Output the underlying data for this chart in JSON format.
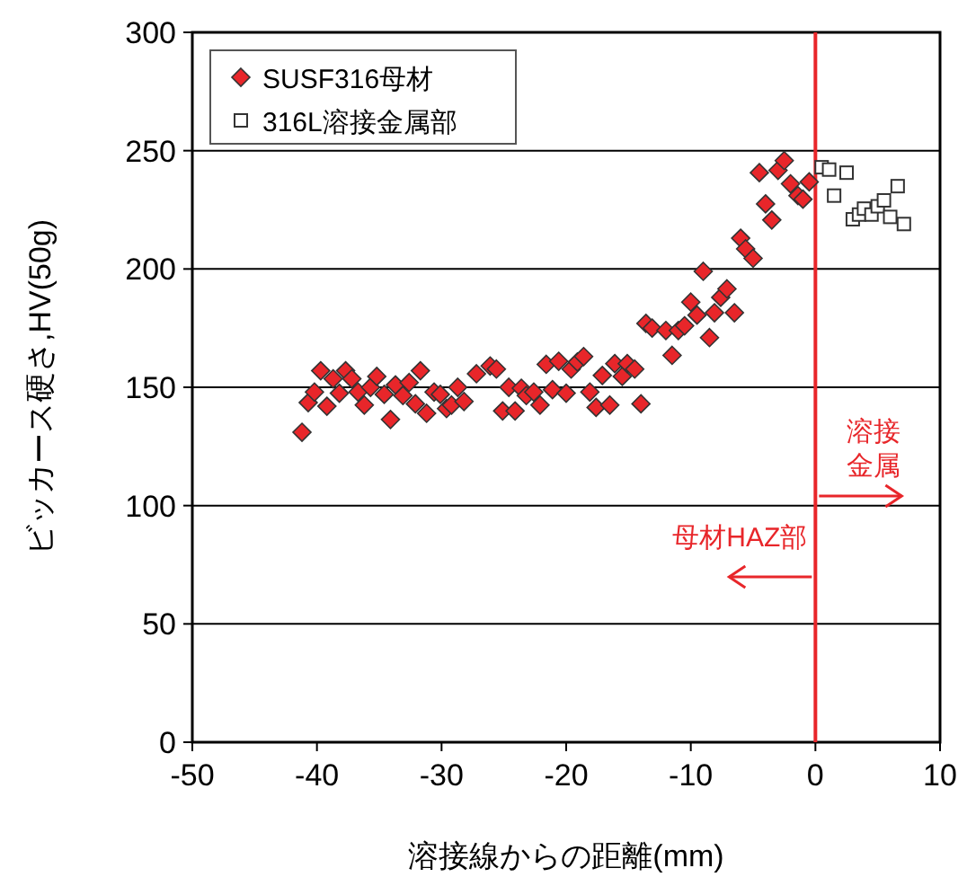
{
  "chart_data": {
    "type": "scatter",
    "xlabel": "溶接線からの距離(mm)",
    "ylabel": "ビッカース硬さ,HV(50g)",
    "xlim": [
      -50,
      10
    ],
    "xticks": [
      -50,
      -40,
      -30,
      -20,
      -10,
      0,
      10
    ],
    "ylim": [
      0,
      300
    ],
    "yticks": [
      0,
      50,
      100,
      150,
      200,
      250,
      300
    ],
    "grid": "y",
    "legend": "top left",
    "ref_lines": [
      {
        "axis": "x",
        "value": 0,
        "color": "#e8262a"
      }
    ],
    "annotations": [
      "溶接金属",
      "母材HAZ部"
    ],
    "series": [
      {
        "name": "SUSF316母材",
        "color": "#e8262a",
        "marker": "diamond",
        "x": [
          -41.2,
          -40.7,
          -40.2,
          -39.7,
          -39.2,
          -38.7,
          -38.2,
          -37.7,
          -37.2,
          -36.7,
          -36.2,
          -35.7,
          -35.2,
          -34.6,
          -34.1,
          -33.7,
          -33.1,
          -32.6,
          -32.1,
          -31.7,
          -31.2,
          -30.6,
          -30.1,
          -29.6,
          -29.2,
          -28.7,
          -28.2,
          -27.2,
          -26.1,
          -25.6,
          -25.1,
          -24.6,
          -24.1,
          -23.6,
          -23.2,
          -22.6,
          -22.1,
          -21.6,
          -21.1,
          -20.6,
          -20.0,
          -19.6,
          -19.1,
          -18.6,
          -18.1,
          -17.6,
          -17.1,
          -16.5,
          -16.1,
          -15.5,
          -15.1,
          -14.5,
          -14.0,
          -13.6,
          -13.1,
          -12.0,
          -11.0,
          -11.5,
          -10.5,
          -10.0,
          -9.5,
          -9.0,
          -8.5,
          -8.1,
          -7.6,
          -7.1,
          -6.5,
          -6.0,
          -5.6,
          -5.0,
          -4.5,
          -4.0,
          -3.5,
          -3.0,
          -2.5,
          -2.0,
          -1.4,
          -1.0,
          -0.5
        ],
        "values": [
          131,
          143.5,
          148,
          157,
          142,
          153.6,
          147.5,
          157,
          153.6,
          148,
          142.5,
          150,
          154.6,
          147,
          136.4,
          151,
          146.5,
          152,
          143,
          157,
          139,
          148,
          147,
          141,
          142.5,
          150,
          144,
          155.7,
          159,
          157.7,
          140,
          150,
          140,
          149.6,
          146.5,
          148,
          142.5,
          159.7,
          149,
          161,
          147.5,
          157.7,
          160.7,
          163,
          148,
          141.5,
          155,
          142.5,
          160,
          154.6,
          160,
          157.7,
          143,
          177,
          175,
          174,
          174,
          163.5,
          176,
          186,
          180.5,
          199,
          171,
          181.5,
          188,
          191.6,
          181.5,
          213,
          208.5,
          204.5,
          240.7,
          227.5,
          220.7,
          241.7,
          245.8,
          236,
          231,
          229.5,
          236.8
        ]
      },
      {
        "name": "316L溶接金属部",
        "color": "#ffffff",
        "marker": "square",
        "x": [
          0.5,
          1.1,
          2.5,
          1.5,
          3.0,
          3.5,
          3.9,
          4.5,
          5.0,
          5.5,
          6.0,
          6.6,
          7.1
        ],
        "values": [
          243,
          242,
          240.7,
          231,
          221,
          223,
          225.5,
          223,
          226.5,
          229,
          222,
          235,
          219
        ]
      }
    ]
  }
}
